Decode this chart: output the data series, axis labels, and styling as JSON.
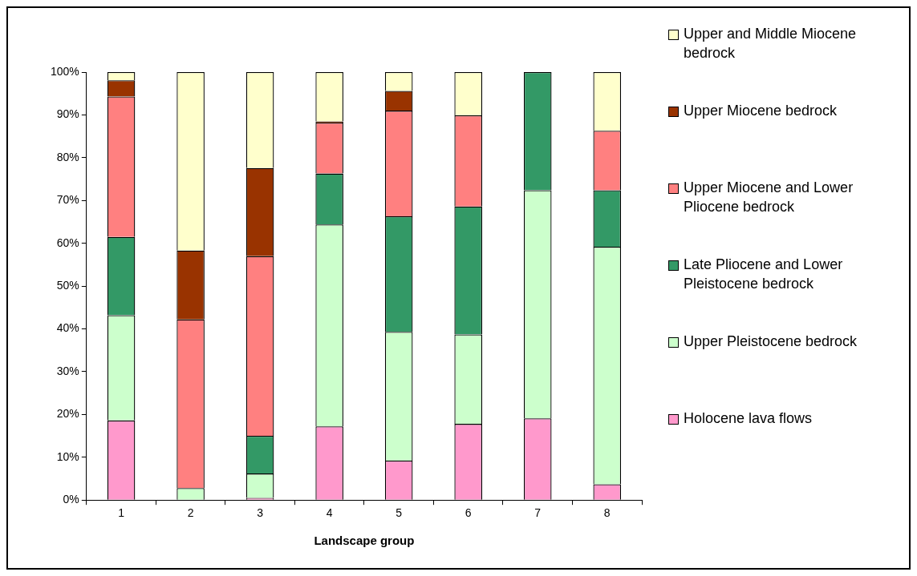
{
  "chart_data": {
    "type": "bar",
    "stacked": true,
    "xlabel": "Landscape group",
    "categories": [
      "1",
      "2",
      "3",
      "4",
      "5",
      "6",
      "7",
      "8"
    ],
    "series": [
      {
        "name": "Holocene lava flows",
        "color": "#ff99cc",
        "values": [
          18.6,
          0,
          0.5,
          17.2,
          9.2,
          17.8,
          19.1,
          3.7
        ]
      },
      {
        "name": "Upper Pleistocene bedrock",
        "color": "#ccffcc",
        "values": [
          24.6,
          2.8,
          5.7,
          47.2,
          30.1,
          20.9,
          53.3,
          55.5
        ]
      },
      {
        "name": "Late Pliocene and Lower Pleistocene bedrock",
        "color": "#339966",
        "values": [
          18.3,
          0,
          8.8,
          11.9,
          27.0,
          29.9,
          27.6,
          13.2
        ]
      },
      {
        "name": "Upper Miocene and Lower Pliocene bedrock",
        "color": "#ff8080",
        "values": [
          32.8,
          39.4,
          42.0,
          11.9,
          24.7,
          21.3,
          0,
          13.9
        ]
      },
      {
        "name": "Upper Miocene bedrock",
        "color": "#993300",
        "values": [
          3.8,
          16.1,
          20.6,
          0.3,
          4.6,
          0,
          0,
          0
        ]
      },
      {
        "name": "Upper and Middle Miocene bedrock",
        "color": "#ffffcc",
        "values": [
          1.9,
          41.7,
          22.4,
          11.5,
          4.4,
          10.1,
          0,
          13.7
        ]
      }
    ],
    "ylim": [
      0,
      100
    ],
    "yticks": [
      {
        "value": 0,
        "label": "0%"
      },
      {
        "value": 10,
        "label": "10%"
      },
      {
        "value": 20,
        "label": "20%"
      },
      {
        "value": 30,
        "label": "30%"
      },
      {
        "value": 40,
        "label": "40%"
      },
      {
        "value": 50,
        "label": "50%"
      },
      {
        "value": 60,
        "label": "60%"
      },
      {
        "value": 70,
        "label": "70%"
      },
      {
        "value": 80,
        "label": "80%"
      },
      {
        "value": 90,
        "label": "90%"
      },
      {
        "value": 100,
        "label": "100%"
      }
    ],
    "grid": false,
    "legend": "right"
  }
}
